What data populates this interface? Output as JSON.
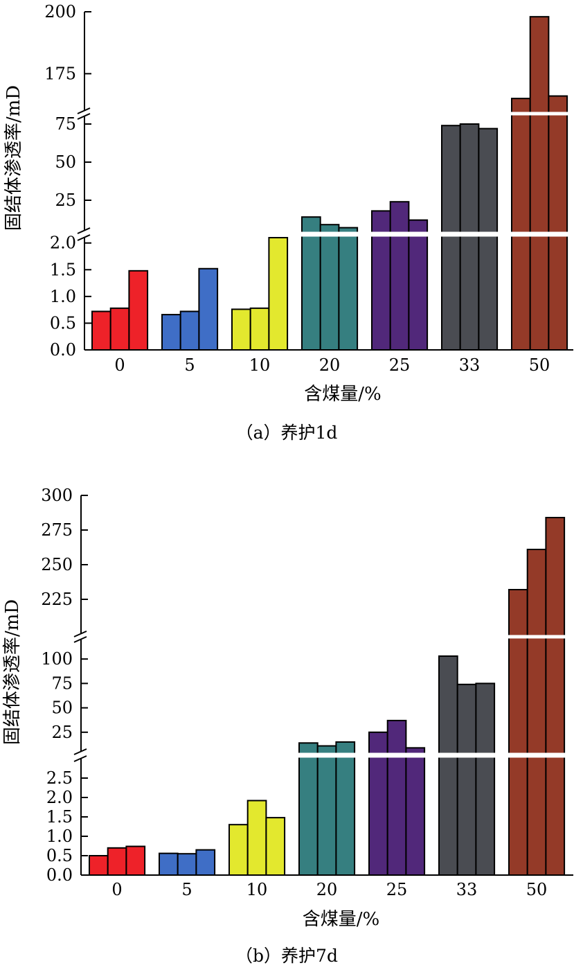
{
  "chart_data": [
    {
      "type": "bar",
      "caption": "（a）养护1d",
      "xlabel": "含煤量/%",
      "ylabel": "固结体渗透率/mD",
      "categories": [
        "0",
        "5",
        "10",
        "20",
        "25",
        "33",
        "50"
      ],
      "colors": [
        "#ee2229",
        "#3f6ec6",
        "#e3e82e",
        "#367f80",
        "#51287a",
        "#4a4c52",
        "#943a28"
      ],
      "y_axis_break": true,
      "segments": [
        {
          "ylim": [
            0,
            2.1
          ],
          "ticks": [
            0.0,
            0.5,
            1.0,
            1.5,
            2.0
          ],
          "tick_labels": [
            "0.0",
            "0.5",
            "1.0",
            "1.5",
            "2.0"
          ]
        },
        {
          "ylim": [
            5,
            80
          ],
          "ticks": [
            25,
            50,
            75
          ],
          "tick_labels": [
            "25",
            "50",
            "75"
          ]
        },
        {
          "ylim": [
            160,
            200
          ],
          "ticks": [
            175,
            200
          ],
          "tick_labels": [
            "175",
            "200"
          ]
        }
      ],
      "values": [
        [
          0.72,
          0.78,
          1.48
        ],
        [
          0.66,
          0.72,
          1.52
        ],
        [
          0.76,
          0.78,
          2.1
        ],
        [
          14,
          9,
          7
        ],
        [
          18,
          24,
          12
        ],
        [
          74,
          75,
          72
        ],
        [
          165,
          198,
          166
        ]
      ]
    },
    {
      "type": "bar",
      "caption": "（b）养护7d",
      "xlabel": "含煤量/%",
      "ylabel": "固结体渗透率/mD",
      "categories": [
        "0",
        "5",
        "10",
        "20",
        "25",
        "33",
        "50"
      ],
      "colors": [
        "#ee2229",
        "#3f6ec6",
        "#e3e82e",
        "#367f80",
        "#51287a",
        "#4a4c52",
        "#943a28"
      ],
      "y_axis_break": true,
      "segments": [
        {
          "ylim": [
            0,
            3.0
          ],
          "ticks": [
            0.0,
            0.5,
            1.0,
            1.5,
            2.0,
            2.5
          ],
          "tick_labels": [
            "0.0",
            "0.5",
            "1.0",
            "1.5",
            "2.0",
            "2.5"
          ]
        },
        {
          "ylim": [
            5,
            120
          ],
          "ticks": [
            25,
            50,
            75,
            100
          ],
          "tick_labels": [
            "25",
            "50",
            "75",
            "100"
          ]
        },
        {
          "ylim": [
            200,
            300
          ],
          "ticks": [
            225,
            250,
            275,
            300
          ],
          "tick_labels": [
            "225",
            "250",
            "275",
            "300"
          ]
        }
      ],
      "values": [
        [
          0.5,
          0.7,
          0.74
        ],
        [
          0.56,
          0.55,
          0.65
        ],
        [
          1.3,
          1.92,
          1.48
        ],
        [
          14,
          11,
          15
        ],
        [
          25,
          37,
          9
        ],
        [
          103,
          74,
          75
        ],
        [
          232,
          261,
          284
        ]
      ]
    }
  ]
}
